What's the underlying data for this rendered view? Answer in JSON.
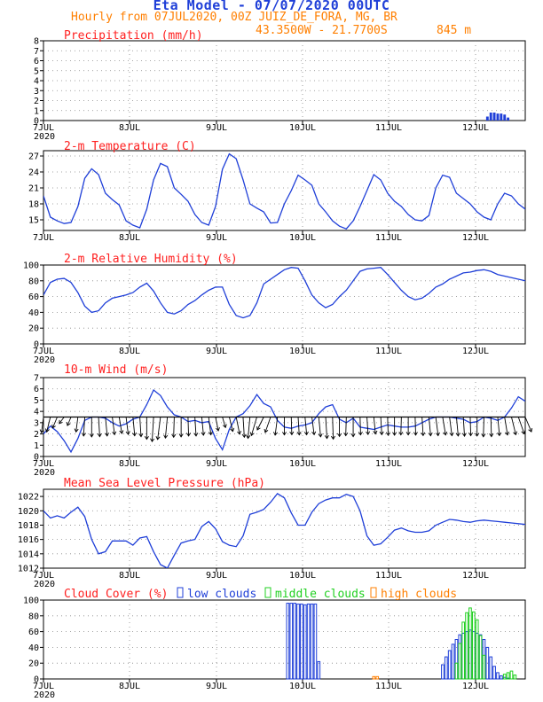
{
  "header": {
    "title": "Eta Model - 07/07/2020 00UTC",
    "subtitle": "Hourly from 07JUL2020, 00Z  JUIZ_DE_FORA, MG, BR",
    "coords": "43.3500W - 21.7700S",
    "elevation": "845  m"
  },
  "colors": {
    "series": "#1f3fd8",
    "title": "#ff2020",
    "header": "#ff7f00",
    "low": "#1f3fd8",
    "middle": "#20d020",
    "high": "#ff7f00"
  },
  "chart_data": [
    {
      "id": "precip",
      "type": "bar",
      "title": "Precipitation (mm/h)",
      "ylim": [
        0,
        8
      ],
      "yticks": [
        0,
        1,
        2,
        3,
        4,
        5,
        6,
        7,
        8
      ],
      "xlabels": [
        "7JUL",
        "8JUL",
        "9JUL",
        "10JUL",
        "11JUL",
        "12JUL"
      ],
      "year_label": "2020",
      "x_hours": [
        129,
        130,
        131,
        132,
        133,
        134,
        135
      ],
      "values": [
        0.4,
        0.8,
        0.8,
        0.7,
        0.7,
        0.6,
        0.3
      ]
    },
    {
      "id": "temp",
      "type": "line",
      "title": "2-m Temperature (C)",
      "ylim": [
        13,
        28
      ],
      "yticks": [
        15,
        18,
        21,
        24,
        27
      ],
      "xlabels": [
        "7JUL",
        "8JUL",
        "9JUL",
        "10JUL",
        "11JUL",
        "12JUL"
      ],
      "x": [
        0,
        2,
        4,
        6,
        8,
        10,
        12,
        14,
        16,
        18,
        20,
        22,
        24,
        26,
        28,
        30,
        32,
        34,
        36,
        38,
        40,
        42,
        44,
        46,
        48,
        50,
        52,
        54,
        56,
        58,
        60,
        62,
        64,
        66,
        68,
        70,
        72,
        74,
        76,
        78,
        80,
        82,
        84,
        86,
        88,
        90,
        92,
        94,
        96,
        98,
        100,
        102,
        104,
        106,
        108,
        110,
        112,
        114,
        116,
        118,
        120,
        122,
        124,
        126,
        128,
        130,
        132,
        134,
        136,
        138,
        140
      ],
      "y": [
        19.5,
        15.5,
        14.8,
        14.3,
        14.5,
        17.5,
        22.8,
        24.6,
        23.5,
        20.0,
        18.8,
        17.8,
        14.8,
        14.0,
        13.5,
        17.0,
        22.5,
        25.6,
        25.0,
        21.0,
        19.8,
        18.5,
        16.0,
        14.5,
        14.0,
        17.5,
        24.5,
        27.4,
        26.5,
        22.5,
        18.0,
        17.2,
        16.5,
        14.4,
        14.5,
        18.0,
        20.5,
        23.4,
        22.5,
        21.5,
        18.0,
        16.5,
        14.8,
        13.8,
        13.3,
        14.8,
        17.5,
        20.5,
        23.5,
        22.5,
        20.0,
        18.5,
        17.5,
        16.0,
        15.0,
        14.8,
        15.8,
        21.0,
        23.4,
        23.0,
        20.0,
        19.0,
        18.0,
        16.5,
        15.5,
        15.0,
        18.0,
        20.0,
        19.5,
        18.0,
        17.0
      ]
    },
    {
      "id": "rh",
      "type": "line",
      "title": "2-m Relative Humidity (%)",
      "ylim": [
        0,
        100
      ],
      "yticks": [
        0,
        20,
        40,
        60,
        80,
        100
      ],
      "xlabels": [
        "7JUL",
        "8JUL",
        "9JUL",
        "10JUL",
        "11JUL",
        "12JUL"
      ],
      "year_label": "2020",
      "x": [
        0,
        2,
        4,
        6,
        8,
        10,
        12,
        14,
        16,
        18,
        20,
        22,
        24,
        26,
        28,
        30,
        32,
        34,
        36,
        38,
        40,
        42,
        44,
        46,
        48,
        50,
        52,
        54,
        56,
        58,
        60,
        62,
        64,
        66,
        68,
        70,
        72,
        74,
        76,
        78,
        80,
        82,
        84,
        86,
        88,
        90,
        92,
        94,
        96,
        98,
        100,
        102,
        104,
        106,
        108,
        110,
        112,
        114,
        116,
        118,
        120,
        122,
        124,
        126,
        128,
        130,
        132,
        134,
        136,
        138,
        140
      ],
      "y": [
        62,
        78,
        82,
        83,
        78,
        65,
        48,
        40,
        42,
        52,
        58,
        60,
        62,
        65,
        72,
        77,
        67,
        52,
        40,
        38,
        42,
        50,
        55,
        62,
        68,
        72,
        72,
        50,
        36,
        33,
        36,
        52,
        76,
        82,
        88,
        94,
        97,
        96,
        80,
        62,
        52,
        46,
        50,
        60,
        68,
        80,
        92,
        95,
        96,
        97,
        88,
        78,
        68,
        60,
        56,
        58,
        64,
        72,
        76,
        82,
        86,
        90,
        91,
        93,
        94,
        92,
        88,
        86,
        84,
        82,
        80
      ]
    },
    {
      "id": "wind",
      "type": "line",
      "title": "10-m Wind (m/s)",
      "ylim": [
        0,
        7
      ],
      "yticks": [
        0,
        1,
        2,
        3,
        4,
        5,
        6,
        7
      ],
      "xlabels": [
        "7JUL",
        "8JUL",
        "9JUL",
        "10JUL",
        "11JUL",
        "12JUL"
      ],
      "year_label": "2020",
      "x": [
        0,
        2,
        4,
        6,
        8,
        10,
        12,
        14,
        16,
        18,
        20,
        22,
        24,
        26,
        28,
        30,
        32,
        34,
        36,
        38,
        40,
        42,
        44,
        46,
        48,
        50,
        52,
        54,
        56,
        58,
        60,
        62,
        64,
        66,
        68,
        70,
        72,
        74,
        76,
        78,
        80,
        82,
        84,
        86,
        88,
        90,
        92,
        94,
        96,
        98,
        100,
        102,
        104,
        106,
        108,
        110,
        112,
        114,
        116,
        118,
        120,
        122,
        124,
        126,
        128,
        130,
        132,
        134,
        136,
        138,
        140
      ],
      "y": [
        2.0,
        2.7,
        2.2,
        1.4,
        0.4,
        1.6,
        3.2,
        3.5,
        3.5,
        3.4,
        3.0,
        2.7,
        2.9,
        3.3,
        3.5,
        4.6,
        5.9,
        5.4,
        4.4,
        3.7,
        3.5,
        3.1,
        3.2,
        3.0,
        3.1,
        1.6,
        0.6,
        2.4,
        3.5,
        3.8,
        4.5,
        5.5,
        4.7,
        4.4,
        3.2,
        2.6,
        2.5,
        2.7,
        2.8,
        3.0,
        3.8,
        4.4,
        4.6,
        3.3,
        3.0,
        3.4,
        2.6,
        2.5,
        2.4,
        2.6,
        2.8,
        2.7,
        2.6,
        2.6,
        2.7,
        3.0,
        3.3,
        3.5,
        3.5,
        3.5,
        3.4,
        3.3,
        3.0,
        3.1,
        3.5,
        3.4,
        3.2,
        3.5,
        4.3,
        5.3,
        4.9
      ],
      "barb_dirs": [
        200,
        215,
        230,
        245,
        230,
        200,
        190,
        180,
        170,
        165,
        160,
        155,
        160,
        165,
        170,
        180,
        190,
        200,
        195,
        185,
        180,
        175,
        170,
        165,
        160,
        150,
        140,
        145,
        150,
        170,
        195,
        220,
        235,
        225,
        200,
        180,
        175,
        170,
        165,
        160,
        165,
        170,
        175,
        180,
        185,
        180,
        175,
        170,
        165,
        170,
        175,
        180,
        185,
        180,
        175,
        170,
        165,
        160,
        155,
        160,
        165,
        170,
        175,
        180,
        185,
        175,
        165,
        155,
        145,
        135,
        130
      ]
    },
    {
      "id": "mslp",
      "type": "line",
      "title": "Mean Sea Level Pressure (hPa)",
      "ylim": [
        1012,
        1023
      ],
      "yticks": [
        1012,
        1014,
        1016,
        1018,
        1020,
        1022
      ],
      "xlabels": [
        "7JUL",
        "8JUL",
        "9JUL",
        "10JUL",
        "11JUL",
        "12JUL"
      ],
      "year_label": "2020",
      "x": [
        0,
        2,
        4,
        6,
        8,
        10,
        12,
        14,
        16,
        18,
        20,
        22,
        24,
        26,
        28,
        30,
        32,
        34,
        36,
        38,
        40,
        42,
        44,
        46,
        48,
        50,
        52,
        54,
        56,
        58,
        60,
        62,
        64,
        66,
        68,
        70,
        72,
        74,
        76,
        78,
        80,
        82,
        84,
        86,
        88,
        90,
        92,
        94,
        96,
        98,
        100,
        102,
        104,
        106,
        108,
        110,
        112,
        114,
        116,
        118,
        120,
        122,
        124,
        126,
        128,
        130,
        132,
        134,
        136,
        138,
        140
      ],
      "y": [
        1020.0,
        1019.0,
        1019.3,
        1019.0,
        1019.8,
        1020.5,
        1019.2,
        1016.0,
        1014.0,
        1014.3,
        1015.8,
        1015.8,
        1015.8,
        1015.2,
        1016.2,
        1016.4,
        1014.3,
        1012.5,
        1012.0,
        1013.8,
        1015.5,
        1015.8,
        1016.0,
        1017.8,
        1018.5,
        1017.5,
        1015.7,
        1015.2,
        1015.0,
        1016.5,
        1019.5,
        1019.8,
        1020.2,
        1021.2,
        1022.4,
        1021.8,
        1019.7,
        1018.0,
        1018.0,
        1019.8,
        1021.0,
        1021.5,
        1021.8,
        1021.8,
        1022.3,
        1022.0,
        1020.0,
        1016.5,
        1015.2,
        1015.4,
        1016.3,
        1017.3,
        1017.6,
        1017.2,
        1017.0,
        1017.0,
        1017.2,
        1018.0,
        1018.4,
        1018.8,
        1018.7,
        1018.5,
        1018.4,
        1018.6,
        1018.7,
        1018.6,
        1018.5,
        1018.4,
        1018.3,
        1018.2,
        1018.1
      ]
    },
    {
      "id": "cloud",
      "type": "bar",
      "title": "Cloud Cover (%)",
      "ylim": [
        0,
        100
      ],
      "yticks": [
        0,
        20,
        40,
        60,
        80,
        100
      ],
      "xlabels": [
        "7JUL",
        "8JUL",
        "9JUL",
        "10JUL",
        "11JUL",
        "12JUL"
      ],
      "year_label": "2020",
      "legend": [
        {
          "key": "low",
          "label": "low clouds"
        },
        {
          "key": "middle",
          "label": "middle clouds"
        },
        {
          "key": "high",
          "label": "high clouds"
        }
      ],
      "series": [
        {
          "name": "low",
          "x": [
            71,
            72,
            73,
            74,
            75,
            76,
            77,
            78,
            79,
            80,
            116,
            117,
            118,
            119,
            120,
            121,
            122,
            123,
            124,
            125,
            126,
            127,
            128,
            129,
            130,
            131,
            132,
            133,
            134,
            135
          ],
          "values": [
            96,
            96,
            96,
            95,
            95,
            94,
            95,
            95,
            95,
            22,
            18,
            28,
            36,
            44,
            50,
            56,
            58,
            60,
            62,
            60,
            58,
            56,
            50,
            40,
            28,
            16,
            8,
            4,
            2,
            1
          ]
        },
        {
          "name": "middle",
          "x": [
            120,
            121,
            122,
            123,
            124,
            125,
            126,
            127,
            128,
            134,
            135,
            136,
            137
          ],
          "values": [
            20,
            45,
            72,
            84,
            90,
            85,
            75,
            55,
            30,
            6,
            8,
            10,
            5
          ]
        },
        {
          "name": "high",
          "x": [
            96,
            97
          ],
          "values": [
            3,
            3
          ]
        }
      ]
    }
  ]
}
